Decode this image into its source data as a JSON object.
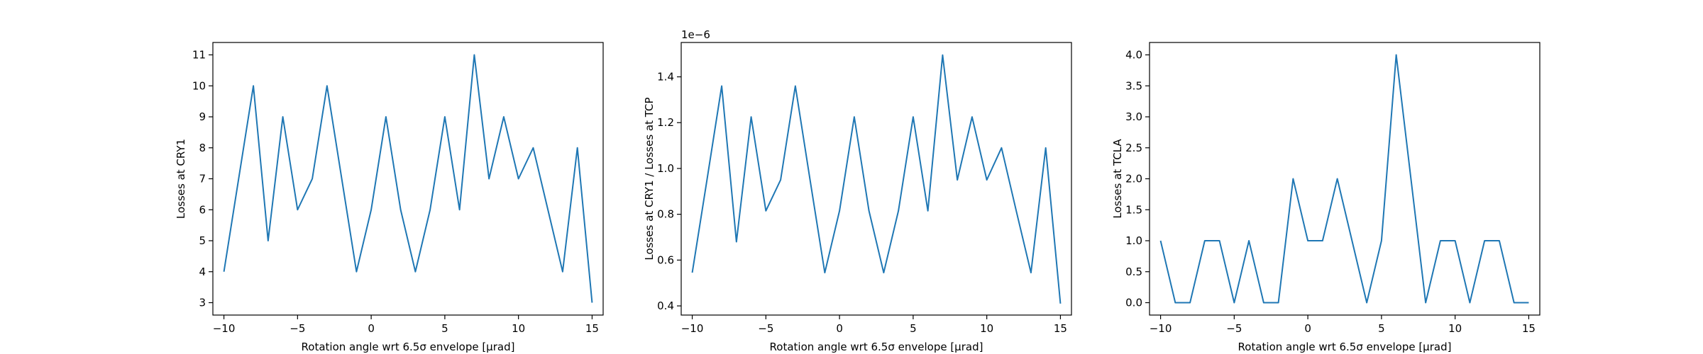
{
  "chart_data": [
    {
      "type": "line",
      "xlabel": "Rotation angle wrt 6.5σ envelope [μrad]",
      "ylabel": "Losses at CRY1",
      "offset_text": "",
      "xlim": [
        -10.75,
        15.75
      ],
      "ylim": [
        2.6,
        11.4
      ],
      "xticks": [
        -10,
        -5,
        0,
        5,
        10,
        15
      ],
      "xtick_labels": [
        "−10",
        "−5",
        "0",
        "5",
        "10",
        "15"
      ],
      "yticks": [
        3,
        4,
        5,
        6,
        7,
        8,
        9,
        10,
        11
      ],
      "ytick_labels": [
        "3",
        "4",
        "5",
        "6",
        "7",
        "8",
        "9",
        "10",
        "11"
      ],
      "color": "#1f77b4",
      "x": [
        -10,
        -9,
        -8,
        -7,
        -6,
        -5,
        -4,
        -3,
        -2,
        -1,
        0,
        1,
        2,
        3,
        4,
        5,
        6,
        7,
        8,
        9,
        10,
        11,
        12,
        13,
        14,
        15
      ],
      "y": [
        4,
        7,
        10,
        5,
        9,
        6,
        7,
        10,
        7,
        4,
        6,
        9,
        6,
        4,
        6,
        9,
        6,
        11,
        7,
        9,
        7,
        8,
        6,
        4,
        8,
        3
      ]
    },
    {
      "type": "line",
      "xlabel": "Rotation angle wrt 6.5σ envelope [μrad]",
      "ylabel": "Losses at CRY1 / Losses at TCP",
      "offset_text": "1e−6",
      "xlim": [
        -10.75,
        15.75
      ],
      "ylim": [
        0.36,
        1.55
      ],
      "xticks": [
        -10,
        -5,
        0,
        5,
        10,
        15
      ],
      "xtick_labels": [
        "−10",
        "−5",
        "0",
        "5",
        "10",
        "15"
      ],
      "yticks": [
        0.4,
        0.6,
        0.8,
        1.0,
        1.2,
        1.4
      ],
      "ytick_labels": [
        "0.4",
        "0.6",
        "0.8",
        "1.0",
        "1.2",
        "1.4"
      ],
      "color": "#1f77b4",
      "x": [
        -10,
        -9,
        -8,
        -7,
        -6,
        -5,
        -4,
        -3,
        -2,
        -1,
        0,
        1,
        2,
        3,
        4,
        5,
        6,
        7,
        8,
        9,
        10,
        11,
        12,
        13,
        14,
        15
      ],
      "y": [
        0.545,
        0.95,
        1.36,
        0.68,
        1.225,
        0.815,
        0.95,
        1.36,
        0.95,
        0.545,
        0.815,
        1.225,
        0.815,
        0.545,
        0.815,
        1.225,
        0.815,
        1.495,
        0.95,
        1.225,
        0.95,
        1.09,
        0.815,
        0.545,
        1.09,
        0.41
      ]
    },
    {
      "type": "line",
      "xlabel": "Rotation angle wrt 6.5σ envelope [μrad]",
      "ylabel": "Losses at TCLA",
      "offset_text": "",
      "xlim": [
        -10.75,
        15.75
      ],
      "ylim": [
        -0.2,
        4.2
      ],
      "xticks": [
        -10,
        -5,
        0,
        5,
        10,
        15
      ],
      "xtick_labels": [
        "−10",
        "−5",
        "0",
        "5",
        "10",
        "15"
      ],
      "yticks": [
        0.0,
        0.5,
        1.0,
        1.5,
        2.0,
        2.5,
        3.0,
        3.5,
        4.0
      ],
      "ytick_labels": [
        "0.0",
        "0.5",
        "1.0",
        "1.5",
        "2.0",
        "2.5",
        "3.0",
        "3.5",
        "4.0"
      ],
      "color": "#1f77b4",
      "x": [
        -10,
        -9,
        -8,
        -7,
        -6,
        -5,
        -4,
        -3,
        -2,
        -1,
        0,
        1,
        2,
        3,
        4,
        5,
        6,
        7,
        8,
        9,
        10,
        11,
        12,
        13,
        14,
        15
      ],
      "y": [
        1,
        0,
        0,
        1,
        1,
        0,
        1,
        0,
        0,
        2,
        1,
        1,
        2,
        1,
        0,
        1,
        4,
        2,
        0,
        1,
        1,
        0,
        1,
        1,
        0,
        0
      ]
    }
  ]
}
